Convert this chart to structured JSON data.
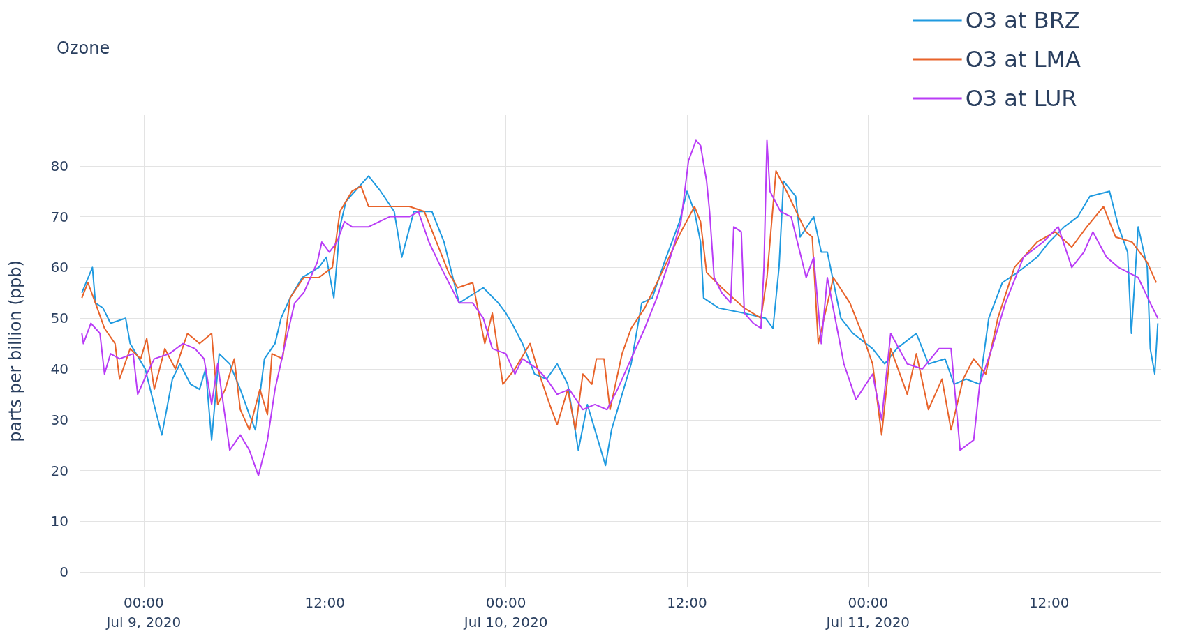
{
  "chart_data": {
    "type": "line",
    "title": "Ozone",
    "ylabel": "parts per billion (ppb)",
    "xlim": [
      "2020-07-08T19:45",
      "2020-07-11T19:25"
    ],
    "xticks": [
      {
        "value": "2020-07-09T00:00",
        "label": "00:00\nJul 9, 2020"
      },
      {
        "value": "2020-07-09T12:00",
        "label": "12:00"
      },
      {
        "value": "2020-07-10T00:00",
        "label": "00:00\nJul 10, 2020"
      },
      {
        "value": "2020-07-10T12:00",
        "label": "12:00"
      },
      {
        "value": "2020-07-11T00:00",
        "label": "00:00\nJul 11, 2020"
      },
      {
        "value": "2020-07-11T12:00",
        "label": "12:00"
      }
    ],
    "ylim": [
      -3,
      90
    ],
    "yticks": [
      0,
      10,
      20,
      30,
      40,
      50,
      60,
      70,
      80
    ],
    "grid": true,
    "legend": "top right",
    "series": [
      {
        "name": "O3 at BRZ",
        "color": "#1f9ae0",
        "x": [
          "2020-07-08T19:54",
          "2020-07-08T20:36",
          "2020-07-08T20:48",
          "2020-07-08T21:18",
          "2020-07-08T21:48",
          "2020-07-08T22:48",
          "2020-07-08T23:06",
          "2020-07-09T00:06",
          "2020-07-09T00:36",
          "2020-07-09T01:12",
          "2020-07-09T01:54",
          "2020-07-09T02:24",
          "2020-07-09T03:06",
          "2020-07-09T03:42",
          "2020-07-09T04:06",
          "2020-07-09T04:30",
          "2020-07-09T05:00",
          "2020-07-09T05:42",
          "2020-07-09T06:24",
          "2020-07-09T07:00",
          "2020-07-09T07:24",
          "2020-07-09T08:00",
          "2020-07-09T08:42",
          "2020-07-09T09:06",
          "2020-07-09T09:42",
          "2020-07-09T10:30",
          "2020-07-09T11:36",
          "2020-07-09T12:06",
          "2020-07-09T12:36",
          "2020-07-09T13:00",
          "2020-07-09T13:24",
          "2020-07-09T14:54",
          "2020-07-09T15:42",
          "2020-07-09T16:36",
          "2020-07-09T17:06",
          "2020-07-09T17:54",
          "2020-07-09T19:06",
          "2020-07-09T19:54",
          "2020-07-09T20:54",
          "2020-07-09T22:30",
          "2020-07-09T23:30",
          "2020-07-10T00:00",
          "2020-07-10T00:24",
          "2020-07-10T01:06",
          "2020-07-10T01:54",
          "2020-07-10T02:42",
          "2020-07-10T03:24",
          "2020-07-10T04:06",
          "2020-07-10T04:48",
          "2020-07-10T05:24",
          "2020-07-10T06:06",
          "2020-07-10T06:36",
          "2020-07-10T07:00",
          "2020-07-10T07:42",
          "2020-07-10T08:18",
          "2020-07-10T09:00",
          "2020-07-10T09:42",
          "2020-07-10T10:30",
          "2020-07-10T11:30",
          "2020-07-10T12:00",
          "2020-07-10T12:30",
          "2020-07-10T12:54",
          "2020-07-10T13:06",
          "2020-07-10T14:06",
          "2020-07-10T15:48",
          "2020-07-10T17:12",
          "2020-07-10T17:42",
          "2020-07-10T18:06",
          "2020-07-10T18:24",
          "2020-07-10T19:12",
          "2020-07-10T19:30",
          "2020-07-10T20:24",
          "2020-07-10T20:54",
          "2020-07-10T21:18",
          "2020-07-10T22:12",
          "2020-07-10T23:00",
          "2020-07-11T00:18",
          "2020-07-11T01:06",
          "2020-07-11T01:54",
          "2020-07-11T03:12",
          "2020-07-11T04:00",
          "2020-07-11T05:06",
          "2020-07-11T05:42",
          "2020-07-11T06:30",
          "2020-07-11T07:24",
          "2020-07-11T08:00",
          "2020-07-11T08:54",
          "2020-07-11T09:54",
          "2020-07-11T11:12",
          "2020-07-11T12:00",
          "2020-07-11T13:00",
          "2020-07-11T13:54",
          "2020-07-11T14:42",
          "2020-07-11T16:00",
          "2020-07-11T16:36",
          "2020-07-11T17:12",
          "2020-07-11T17:27",
          "2020-07-11T17:54",
          "2020-07-11T18:30",
          "2020-07-11T18:42",
          "2020-07-11T19:00",
          "2020-07-11T19:12"
        ],
        "values": [
          55,
          60,
          53,
          52,
          49,
          50,
          45,
          40,
          34,
          27,
          38,
          41,
          37,
          36,
          40,
          26,
          43,
          41,
          36,
          31,
          28,
          42,
          45,
          50,
          54,
          58,
          60,
          62,
          54,
          68,
          73,
          78,
          75,
          71,
          62,
          71,
          71,
          65,
          53,
          56,
          53,
          51,
          49,
          45,
          39,
          38,
          41,
          37,
          24,
          33,
          26,
          21,
          28,
          35,
          41,
          53,
          54,
          61,
          69,
          75,
          71,
          65,
          54,
          52,
          51,
          50,
          48,
          60,
          77,
          74,
          66,
          70,
          63,
          63,
          50,
          47,
          44,
          41,
          44,
          47,
          41,
          42,
          37,
          38,
          37,
          50,
          57,
          59,
          62,
          65,
          68,
          70,
          74,
          75,
          68,
          63,
          47,
          68,
          60,
          44,
          39,
          49
        ]
      },
      {
        "name": "O3 at LMA",
        "color": "#e8632a",
        "x": [
          "2020-07-08T19:54",
          "2020-07-08T20:18",
          "2020-07-08T20:48",
          "2020-07-08T21:24",
          "2020-07-08T22:06",
          "2020-07-08T22:24",
          "2020-07-08T23:06",
          "2020-07-08T23:48",
          "2020-07-09T00:12",
          "2020-07-09T00:42",
          "2020-07-09T01:24",
          "2020-07-09T02:06",
          "2020-07-09T02:54",
          "2020-07-09T03:42",
          "2020-07-09T04:30",
          "2020-07-09T04:54",
          "2020-07-09T05:24",
          "2020-07-09T06:00",
          "2020-07-09T06:24",
          "2020-07-09T07:00",
          "2020-07-09T07:42",
          "2020-07-09T08:12",
          "2020-07-09T08:30",
          "2020-07-09T09:12",
          "2020-07-09T09:42",
          "2020-07-09T10:36",
          "2020-07-09T11:36",
          "2020-07-09T12:30",
          "2020-07-09T13:00",
          "2020-07-09T13:48",
          "2020-07-09T14:24",
          "2020-07-09T14:54",
          "2020-07-09T16:18",
          "2020-07-09T17:36",
          "2020-07-09T18:36",
          "2020-07-09T19:24",
          "2020-07-09T20:12",
          "2020-07-09T20:48",
          "2020-07-09T21:48",
          "2020-07-09T22:36",
          "2020-07-09T23:06",
          "2020-07-09T23:48",
          "2020-07-10T00:36",
          "2020-07-10T01:36",
          "2020-07-10T02:06",
          "2020-07-10T02:54",
          "2020-07-10T03:24",
          "2020-07-10T04:06",
          "2020-07-10T04:36",
          "2020-07-10T05:06",
          "2020-07-10T05:42",
          "2020-07-10T06:00",
          "2020-07-10T06:30",
          "2020-07-10T06:54",
          "2020-07-10T07:42",
          "2020-07-10T08:18",
          "2020-07-10T09:12",
          "2020-07-10T10:30",
          "2020-07-10T11:36",
          "2020-07-10T12:30",
          "2020-07-10T12:54",
          "2020-07-10T13:18",
          "2020-07-10T14:18",
          "2020-07-10T15:48",
          "2020-07-10T16:54",
          "2020-07-10T17:18",
          "2020-07-10T17:54",
          "2020-07-10T18:36",
          "2020-07-10T19:24",
          "2020-07-10T19:54",
          "2020-07-10T20:18",
          "2020-07-10T20:42",
          "2020-07-10T21:42",
          "2020-07-10T22:48",
          "2020-07-10T23:36",
          "2020-07-11T00:18",
          "2020-07-11T00:54",
          "2020-07-11T01:30",
          "2020-07-11T02:36",
          "2020-07-11T03:12",
          "2020-07-11T04:00",
          "2020-07-11T04:54",
          "2020-07-11T05:30",
          "2020-07-11T06:18",
          "2020-07-11T07:00",
          "2020-07-11T07:48",
          "2020-07-11T08:36",
          "2020-07-11T09:42",
          "2020-07-11T11:12",
          "2020-07-11T12:24",
          "2020-07-11T13:30",
          "2020-07-11T14:30",
          "2020-07-11T15:36",
          "2020-07-11T16:24",
          "2020-07-11T17:30",
          "2020-07-11T18:30",
          "2020-07-11T19:06"
        ],
        "values": [
          54,
          57,
          53,
          48,
          45,
          38,
          44,
          42,
          46,
          36,
          44,
          40,
          47,
          45,
          47,
          33,
          36,
          42,
          32,
          28,
          36,
          31,
          43,
          42,
          54,
          58,
          58,
          60,
          71,
          75,
          76,
          72,
          72,
          72,
          71,
          65,
          59,
          56,
          57,
          45,
          51,
          37,
          40,
          45,
          40,
          33,
          29,
          36,
          28,
          39,
          37,
          42,
          42,
          32,
          43,
          48,
          52,
          60,
          67,
          72,
          69,
          59,
          56,
          52,
          50,
          58,
          79,
          75,
          70,
          67,
          66,
          45,
          58,
          53,
          47,
          41,
          27,
          44,
          35,
          43,
          32,
          38,
          28,
          38,
          42,
          39,
          50,
          60,
          65,
          67,
          64,
          68,
          72,
          66,
          65,
          61,
          57
        ]
      },
      {
        "name": "O3 at LUR",
        "color": "#b93cf6",
        "x": [
          "2020-07-08T19:54",
          "2020-07-08T20:00",
          "2020-07-08T20:30",
          "2020-07-08T21:06",
          "2020-07-08T21:24",
          "2020-07-08T21:48",
          "2020-07-08T22:24",
          "2020-07-08T23:18",
          "2020-07-08T23:36",
          "2020-07-09T00:12",
          "2020-07-09T00:42",
          "2020-07-09T01:42",
          "2020-07-09T02:36",
          "2020-07-09T03:24",
          "2020-07-09T04:00",
          "2020-07-09T04:30",
          "2020-07-09T04:54",
          "2020-07-09T05:42",
          "2020-07-09T06:24",
          "2020-07-09T07:00",
          "2020-07-09T07:36",
          "2020-07-09T08:12",
          "2020-07-09T08:42",
          "2020-07-09T09:18",
          "2020-07-09T10:00",
          "2020-07-09T10:36",
          "2020-07-09T11:30",
          "2020-07-09T11:48",
          "2020-07-09T12:18",
          "2020-07-09T12:48",
          "2020-07-09T13:18",
          "2020-07-09T13:48",
          "2020-07-09T14:54",
          "2020-07-09T16:18",
          "2020-07-09T17:36",
          "2020-07-09T18:12",
          "2020-07-09T18:54",
          "2020-07-09T19:42",
          "2020-07-09T20:54",
          "2020-07-09T21:48",
          "2020-07-09T22:30",
          "2020-07-09T23:06",
          "2020-07-10T00:00",
          "2020-07-10T00:36",
          "2020-07-10T01:06",
          "2020-07-10T02:06",
          "2020-07-10T02:42",
          "2020-07-10T03:24",
          "2020-07-10T04:12",
          "2020-07-10T05:06",
          "2020-07-10T05:54",
          "2020-07-10T06:42",
          "2020-07-10T07:24",
          "2020-07-10T08:18",
          "2020-07-10T09:12",
          "2020-07-10T10:00",
          "2020-07-10T10:48",
          "2020-07-10T11:36",
          "2020-07-10T12:06",
          "2020-07-10T12:36",
          "2020-07-10T12:54",
          "2020-07-10T13:18",
          "2020-07-10T13:30",
          "2020-07-10T13:48",
          "2020-07-10T14:18",
          "2020-07-10T14:54",
          "2020-07-10T15:06",
          "2020-07-10T15:36",
          "2020-07-10T15:48",
          "2020-07-10T16:24",
          "2020-07-10T16:54",
          "2020-07-10T17:06",
          "2020-07-10T17:18",
          "2020-07-10T17:30",
          "2020-07-10T18:12",
          "2020-07-10T18:54",
          "2020-07-10T19:54",
          "2020-07-10T20:24",
          "2020-07-10T20:54",
          "2020-07-10T21:18",
          "2020-07-10T22:24",
          "2020-07-10T23:12",
          "2020-07-11T00:18",
          "2020-07-11T00:54",
          "2020-07-11T01:30",
          "2020-07-11T02:36",
          "2020-07-11T03:36",
          "2020-07-11T04:42",
          "2020-07-11T05:30",
          "2020-07-11T06:06",
          "2020-07-11T07:00",
          "2020-07-11T07:24",
          "2020-07-11T08:12",
          "2020-07-11T09:06",
          "2020-07-11T10:18",
          "2020-07-11T11:36",
          "2020-07-11T12:36",
          "2020-07-11T13:30",
          "2020-07-11T14:18",
          "2020-07-11T14:54",
          "2020-07-11T15:48",
          "2020-07-11T16:36",
          "2020-07-11T17:54",
          "2020-07-11T18:42",
          "2020-07-11T19:12"
        ],
        "values": [
          47,
          45,
          49,
          47,
          39,
          43,
          42,
          43,
          35,
          39,
          42,
          43,
          45,
          44,
          42,
          33,
          41,
          24,
          27,
          24,
          19,
          26,
          36,
          44,
          53,
          55,
          61,
          65,
          63,
          65,
          69,
          68,
          68,
          70,
          70,
          71,
          65,
          60,
          53,
          53,
          50,
          44,
          43,
          39,
          42,
          40,
          38,
          35,
          36,
          32,
          33,
          32,
          36,
          42,
          48,
          54,
          61,
          69,
          81,
          85,
          84,
          77,
          71,
          58,
          55,
          53,
          68,
          67,
          51,
          49,
          48,
          60,
          85,
          75,
          71,
          70,
          58,
          62,
          45,
          58,
          41,
          34,
          39,
          30,
          47,
          41,
          40,
          44,
          44,
          24,
          26,
          37,
          44,
          53,
          62,
          65,
          68,
          60,
          63,
          67,
          62,
          60,
          58,
          53,
          50
        ]
      }
    ]
  }
}
